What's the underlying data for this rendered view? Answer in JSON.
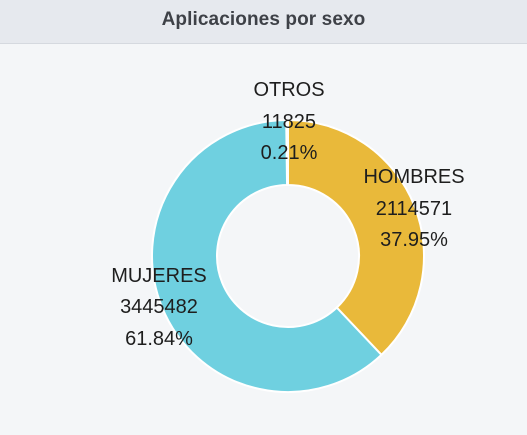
{
  "panel": {
    "title": "Aplicaciones por sexo"
  },
  "colors": {
    "hombres": "#e9b93a",
    "mujeres": "#6fd0e0",
    "otros": "#e9b93a",
    "background": "#f4f6f8",
    "header": "#e6e9ee"
  },
  "chart_data": {
    "type": "pie",
    "title": "Aplicaciones por sexo",
    "variant": "donut",
    "slices": [
      {
        "label": "OTROS",
        "value": 11825,
        "value_text": "11825",
        "percent_text": "0.21%"
      },
      {
        "label": "HOMBRES",
        "value": 2114571,
        "value_text": "2114571",
        "percent_text": "37.95%"
      },
      {
        "label": "MUJERES",
        "value": 3445482,
        "value_text": "3445482",
        "percent_text": "61.84%"
      }
    ]
  }
}
